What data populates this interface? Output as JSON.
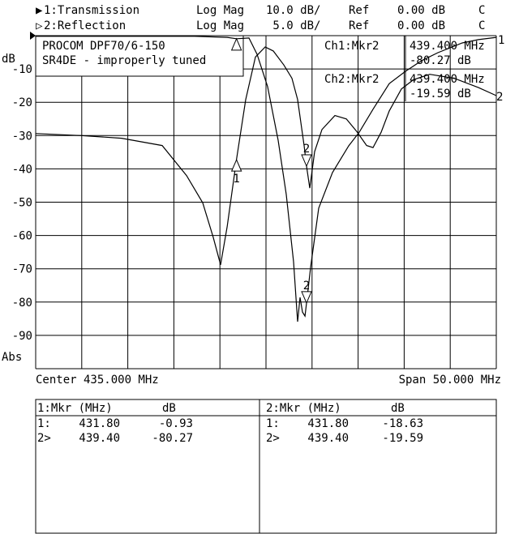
{
  "header": {
    "ch1": {
      "indicator": "▶",
      "name": "1:Transmission",
      "format": "Log Mag",
      "scale": "10.0 dB/",
      "ref_label": "Ref",
      "ref": "0.00 dB",
      "flag": "C"
    },
    "ch2": {
      "indicator": "▷",
      "name": "2:Reflection",
      "format": "Log Mag",
      "scale": " 5.0 dB/",
      "ref_label": "Ref",
      "ref": "0.00 dB",
      "flag": "C"
    }
  },
  "title_box": {
    "line1": "PROCOM DPF70/6-150",
    "line2": "SR4DE - improperly tuned"
  },
  "marker_readout": {
    "ch1": {
      "label": "Ch1:Mkr2",
      "freq": "439.400 MHz",
      "value": "-80.27 dB"
    },
    "ch2": {
      "label": "Ch2:Mkr2",
      "freq": "439.400 MHz",
      "value": "-19.59 dB"
    }
  },
  "axis": {
    "unit": "dB",
    "mode": "Abs",
    "center": "Center 435.000 MHz",
    "span": "Span 50.000 MHz",
    "ytick_labels": [
      "-10",
      "-20",
      "-30",
      "-40",
      "-50",
      "-60",
      "-70",
      "-80",
      "-90"
    ]
  },
  "trace_end_labels": {
    "ch1": "1",
    "ch2": "2"
  },
  "marker_table": {
    "ch1": {
      "header_mkr": "1:Mkr (MHz)",
      "header_db": "dB",
      "rows": [
        {
          "id": "1:",
          "freq": "431.80",
          "db": "-0.93"
        },
        {
          "id": "2>",
          "freq": "439.40",
          "db": "-80.27"
        }
      ]
    },
    "ch2": {
      "header_mkr": "2:Mkr (MHz)",
      "header_db": "dB",
      "rows": [
        {
          "id": "1:",
          "freq": "431.80",
          "db": "-18.63"
        },
        {
          "id": "2>",
          "freq": "439.40",
          "db": "-19.59"
        }
      ]
    }
  },
  "chart_data": {
    "type": "line",
    "xlim": [
      410,
      460
    ],
    "x_unit": "MHz",
    "grid": true,
    "series": [
      {
        "name": "1:Transmission",
        "ylim": [
          -100,
          0
        ],
        "scale_db_per_div": 10,
        "x": [
          410,
          419.33,
          427.25,
          430.78,
          431.8,
          433.15,
          434.03,
          435.18,
          436.32,
          437.2,
          437.99,
          438.43,
          438.7,
          438.96,
          439.23,
          439.4,
          439.84,
          440.72,
          442.22,
          443.98,
          445.12,
          446.62,
          448.38,
          450.14,
          451.9,
          453.66,
          456.3,
          458.06,
          460
        ],
        "y": [
          -0.2,
          -0.2,
          -0.2,
          -0.5,
          -0.93,
          -0.7,
          -5.6,
          -15.3,
          -31.4,
          -47.7,
          -67.9,
          -85.9,
          -78.6,
          -83.0,
          -84.2,
          -80.27,
          -69.6,
          -51.8,
          -41.1,
          -33.1,
          -29.0,
          -22.1,
          -14.4,
          -10.7,
          -7.5,
          -5.1,
          -2.2,
          -1.2,
          -0.5
        ],
        "markers": [
          {
            "id": "1",
            "x": 431.8,
            "y": -0.93
          },
          {
            "id": "2",
            "x": 439.4,
            "y": -80.27,
            "active": true
          }
        ]
      },
      {
        "name": "2:Reflection",
        "ylim": [
          -50,
          0
        ],
        "scale_db_per_div": 5,
        "x": [
          410,
          414.93,
          419.33,
          423.73,
          426.37,
          428.13,
          429.28,
          430.07,
          430.78,
          431.8,
          432.8,
          433.86,
          434.91,
          435.79,
          436.94,
          437.82,
          438.43,
          439.14,
          439.4,
          439.75,
          440.28,
          441.07,
          442.48,
          443.72,
          444.86,
          445.92,
          446.62,
          447.5,
          448.38,
          449.7,
          451.02,
          452.78,
          455.42,
          458.06,
          460
        ],
        "y": [
          -14.7,
          -15.0,
          -15.4,
          -16.5,
          -21.0,
          -25.1,
          -30.3,
          -34.4,
          -28.7,
          -18.63,
          -9.6,
          -3.2,
          -1.7,
          -2.3,
          -4.4,
          -6.4,
          -9.6,
          -16.5,
          -19.59,
          -22.9,
          -17.4,
          -14.1,
          -12.0,
          -12.5,
          -14.4,
          -16.5,
          -16.8,
          -14.5,
          -11.3,
          -8.0,
          -6.6,
          -5.8,
          -6.4,
          -7.8,
          -9.0
        ],
        "markers": [
          {
            "id": "1",
            "x": 431.8,
            "y": -18.63
          },
          {
            "id": "2",
            "x": 439.4,
            "y": -19.59,
            "active": true
          }
        ]
      }
    ]
  }
}
